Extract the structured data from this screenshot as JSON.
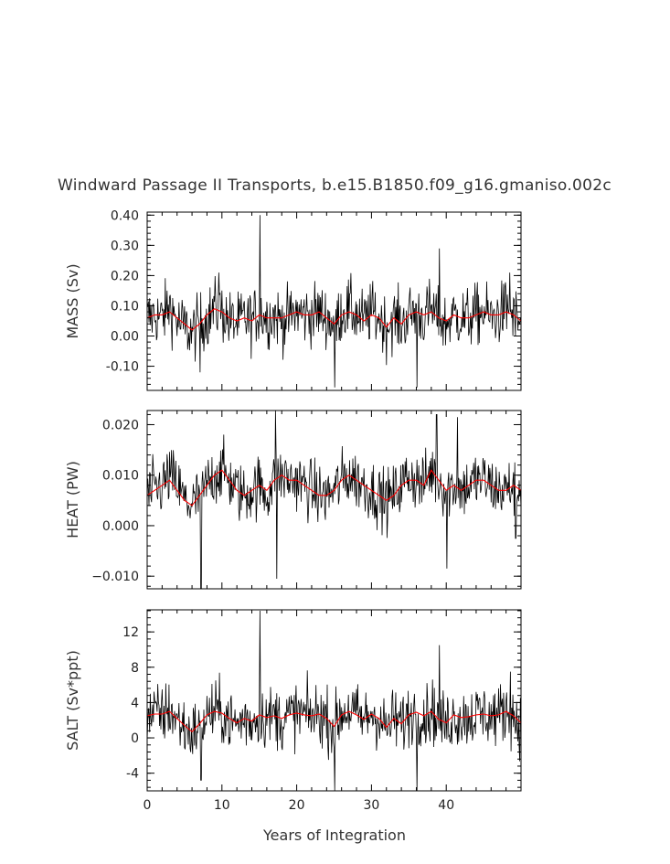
{
  "figure": {
    "title": "Windward Passage II Transports, b.e15.B1850.f09_g16.gmaniso.002c",
    "xlabel": "Years of Integration"
  },
  "chart_data": [
    {
      "type": "line",
      "panel": "mass",
      "title": "",
      "xlabel": "",
      "ylabel": "MASS (Sv)",
      "xlim": [
        0,
        50
      ],
      "ylim": [
        -0.18,
        0.41
      ],
      "x_ticks": [
        0,
        10,
        20,
        30,
        40
      ],
      "x_tick_labels": [],
      "y_ticks": [
        -0.1,
        0.0,
        0.1,
        0.2,
        0.3,
        0.4
      ],
      "y_tick_labels": [
        "-0.10",
        "0.00",
        "0.10",
        "0.20",
        "0.30",
        "0.40"
      ],
      "grid": false,
      "series": [
        {
          "color": "#000000",
          "style": "monthly",
          "x": [
            0,
            1,
            2,
            3,
            4,
            5,
            6,
            7,
            8,
            9,
            10,
            11,
            12,
            13,
            14,
            15,
            16,
            17,
            18,
            19,
            20,
            21,
            22,
            23,
            24,
            25,
            26,
            27,
            28,
            29,
            30,
            31,
            32,
            33,
            34,
            35,
            36,
            37,
            38,
            39,
            40,
            41,
            42,
            43,
            44,
            45,
            46,
            47,
            48,
            49,
            50
          ],
          "values": [
            0.06,
            0.07,
            0.06,
            0.1,
            0.05,
            0.03,
            0.01,
            0.04,
            0.06,
            0.09,
            0.08,
            0.05,
            0.04,
            0.06,
            0.05,
            0.08,
            0.06,
            0.07,
            0.05,
            0.06,
            0.08,
            0.07,
            0.07,
            0.08,
            0.06,
            0.04,
            0.08,
            0.09,
            0.07,
            0.05,
            0.08,
            0.06,
            0.03,
            0.06,
            0.04,
            0.07,
            0.08,
            0.06,
            0.09,
            0.05,
            0.04,
            0.07,
            0.06,
            0.06,
            0.07,
            0.08,
            0.06,
            0.07,
            0.09,
            0.06,
            0.04
          ],
          "spikes": [
            {
              "x": 15.1,
              "y": 0.4
            },
            {
              "x": 39.1,
              "y": 0.29
            },
            {
              "x": 25.1,
              "y": -0.17
            },
            {
              "x": 36.1,
              "y": -0.17
            },
            {
              "x": 7.1,
              "y": -0.12
            },
            {
              "x": 9.6,
              "y": 0.21
            },
            {
              "x": 48.5,
              "y": 0.21
            }
          ]
        },
        {
          "color": "#ff0000",
          "style": "smoothed",
          "x": [
            0,
            1,
            2,
            3,
            4,
            5,
            6,
            7,
            8,
            9,
            10,
            11,
            12,
            13,
            14,
            15,
            16,
            17,
            18,
            19,
            20,
            21,
            22,
            23,
            24,
            25,
            26,
            27,
            28,
            29,
            30,
            31,
            32,
            33,
            34,
            35,
            36,
            37,
            38,
            39,
            40,
            41,
            42,
            43,
            44,
            45,
            46,
            47,
            48,
            49,
            50
          ],
          "values": [
            0.06,
            0.07,
            0.07,
            0.08,
            0.06,
            0.04,
            0.02,
            0.04,
            0.07,
            0.09,
            0.08,
            0.06,
            0.05,
            0.06,
            0.05,
            0.07,
            0.06,
            0.06,
            0.06,
            0.07,
            0.08,
            0.07,
            0.07,
            0.08,
            0.06,
            0.04,
            0.07,
            0.08,
            0.07,
            0.05,
            0.07,
            0.06,
            0.03,
            0.06,
            0.04,
            0.07,
            0.08,
            0.07,
            0.08,
            0.06,
            0.05,
            0.07,
            0.06,
            0.06,
            0.07,
            0.08,
            0.07,
            0.07,
            0.08,
            0.07,
            0.05
          ]
        }
      ]
    },
    {
      "type": "line",
      "panel": "heat",
      "title": "",
      "xlabel": "",
      "ylabel": "HEAT (PW)",
      "xlim": [
        0,
        50
      ],
      "ylim": [
        -0.0125,
        0.0228
      ],
      "x_ticks": [
        0,
        10,
        20,
        30,
        40
      ],
      "x_tick_labels": [],
      "y_ticks": [
        -0.01,
        0.0,
        0.01,
        0.02
      ],
      "y_tick_labels": [
        "−0.010",
        "0.000",
        "0.010",
        "0.020"
      ],
      "grid": false,
      "series": [
        {
          "color": "#000000",
          "style": "monthly",
          "x": [
            0,
            1,
            2,
            3,
            4,
            5,
            6,
            7,
            8,
            9,
            10,
            11,
            12,
            13,
            14,
            15,
            16,
            17,
            18,
            19,
            20,
            21,
            22,
            23,
            24,
            25,
            26,
            27,
            28,
            29,
            30,
            31,
            32,
            33,
            34,
            35,
            36,
            37,
            38,
            39,
            40,
            41,
            42,
            43,
            44,
            45,
            46,
            47,
            48,
            49,
            50
          ],
          "values": [
            0.006,
            0.007,
            0.008,
            0.01,
            0.008,
            0.005,
            0.004,
            0.006,
            0.008,
            0.01,
            0.011,
            0.009,
            0.007,
            0.006,
            0.007,
            0.008,
            0.006,
            0.009,
            0.01,
            0.009,
            0.009,
            0.008,
            0.007,
            0.006,
            0.006,
            0.007,
            0.009,
            0.01,
            0.009,
            0.008,
            0.007,
            0.006,
            0.005,
            0.006,
            0.008,
            0.01,
            0.009,
            0.008,
            0.011,
            0.009,
            0.007,
            0.008,
            0.007,
            0.008,
            0.009,
            0.009,
            0.008,
            0.007,
            0.007,
            0.008,
            0.007
          ],
          "spikes": [
            {
              "x": 7.2,
              "y": -0.0125
            },
            {
              "x": 17.2,
              "y": 0.0228
            },
            {
              "x": 17.3,
              "y": -0.0105
            },
            {
              "x": 38.7,
              "y": 0.022
            },
            {
              "x": 40.1,
              "y": -0.0085
            },
            {
              "x": 41.5,
              "y": 0.0215
            },
            {
              "x": 49.3,
              "y": -0.0025
            }
          ]
        },
        {
          "color": "#ff0000",
          "style": "smoothed",
          "x": [
            0,
            1,
            2,
            3,
            4,
            5,
            6,
            7,
            8,
            9,
            10,
            11,
            12,
            13,
            14,
            15,
            16,
            17,
            18,
            19,
            20,
            21,
            22,
            23,
            24,
            25,
            26,
            27,
            28,
            29,
            30,
            31,
            32,
            33,
            34,
            35,
            36,
            37,
            38,
            39,
            40,
            41,
            42,
            43,
            44,
            45,
            46,
            47,
            48,
            49,
            50
          ],
          "values": [
            0.006,
            0.007,
            0.008,
            0.009,
            0.007,
            0.005,
            0.004,
            0.006,
            0.008,
            0.01,
            0.011,
            0.009,
            0.007,
            0.006,
            0.007,
            0.008,
            0.007,
            0.009,
            0.01,
            0.009,
            0.009,
            0.008,
            0.007,
            0.006,
            0.006,
            0.007,
            0.009,
            0.01,
            0.009,
            0.008,
            0.007,
            0.006,
            0.005,
            0.006,
            0.008,
            0.009,
            0.009,
            0.008,
            0.011,
            0.009,
            0.007,
            0.008,
            0.007,
            0.008,
            0.009,
            0.009,
            0.008,
            0.007,
            0.007,
            0.008,
            0.007
          ]
        }
      ]
    },
    {
      "type": "line",
      "panel": "salt",
      "title": "",
      "xlabel": "Years of Integration",
      "ylabel": "SALT (Sv*ppt)",
      "xlim": [
        0,
        50
      ],
      "ylim": [
        -6,
        14.5
      ],
      "x_ticks": [
        0,
        10,
        20,
        30,
        40
      ],
      "x_tick_labels": [
        "0",
        "10",
        "20",
        "30",
        "40"
      ],
      "y_ticks": [
        -4,
        0,
        4,
        8,
        12
      ],
      "y_tick_labels": [
        "-4",
        "0",
        "4",
        "8",
        "12"
      ],
      "grid": false,
      "series": [
        {
          "color": "#000000",
          "style": "monthly",
          "x": [
            0,
            1,
            2,
            3,
            4,
            5,
            6,
            7,
            8,
            9,
            10,
            11,
            12,
            13,
            14,
            15,
            16,
            17,
            18,
            19,
            20,
            21,
            22,
            23,
            24,
            25,
            26,
            27,
            28,
            29,
            30,
            31,
            32,
            33,
            34,
            35,
            36,
            37,
            38,
            39,
            40,
            41,
            42,
            43,
            44,
            45,
            46,
            47,
            48,
            49,
            50
          ],
          "values": [
            2.5,
            2.8,
            2.6,
            3.2,
            2.0,
            1.2,
            0.5,
            1.5,
            2.5,
            3.0,
            2.8,
            2.0,
            1.5,
            2.2,
            1.8,
            2.8,
            2.2,
            2.6,
            2.0,
            2.5,
            2.8,
            2.6,
            2.5,
            2.8,
            2.2,
            1.2,
            2.8,
            3.2,
            2.6,
            2.0,
            2.8,
            2.2,
            1.0,
            2.2,
            1.5,
            2.6,
            3.0,
            2.4,
            3.2,
            2.0,
            1.5,
            2.6,
            2.2,
            2.4,
            2.6,
            2.8,
            2.4,
            2.6,
            3.2,
            2.4,
            1.5
          ],
          "spikes": [
            {
              "x": 15.1,
              "y": 14.4
            },
            {
              "x": 39.1,
              "y": 10.5
            },
            {
              "x": 25.1,
              "y": -6.0
            },
            {
              "x": 36.1,
              "y": -6.0
            },
            {
              "x": 7.2,
              "y": -4.8
            },
            {
              "x": 48.6,
              "y": 7.5
            }
          ]
        },
        {
          "color": "#ff0000",
          "style": "smoothed",
          "x": [
            0,
            1,
            2,
            3,
            4,
            5,
            6,
            7,
            8,
            9,
            10,
            11,
            12,
            13,
            14,
            15,
            16,
            17,
            18,
            19,
            20,
            21,
            22,
            23,
            24,
            25,
            26,
            27,
            28,
            29,
            30,
            31,
            32,
            33,
            34,
            35,
            36,
            37,
            38,
            39,
            40,
            41,
            42,
            43,
            44,
            45,
            46,
            47,
            48,
            49,
            50
          ],
          "values": [
            2.5,
            2.7,
            2.7,
            3.0,
            2.2,
            1.4,
            0.7,
            1.6,
            2.6,
            3.0,
            2.8,
            2.2,
            1.7,
            2.2,
            1.9,
            2.6,
            2.3,
            2.5,
            2.2,
            2.6,
            2.8,
            2.6,
            2.5,
            2.7,
            2.2,
            1.3,
            2.6,
            3.0,
            2.6,
            2.1,
            2.7,
            2.2,
            1.2,
            2.2,
            1.6,
            2.6,
            2.9,
            2.5,
            3.0,
            2.1,
            1.7,
            2.6,
            2.3,
            2.4,
            2.6,
            2.7,
            2.5,
            2.6,
            3.0,
            2.5,
            1.7
          ]
        }
      ]
    }
  ]
}
